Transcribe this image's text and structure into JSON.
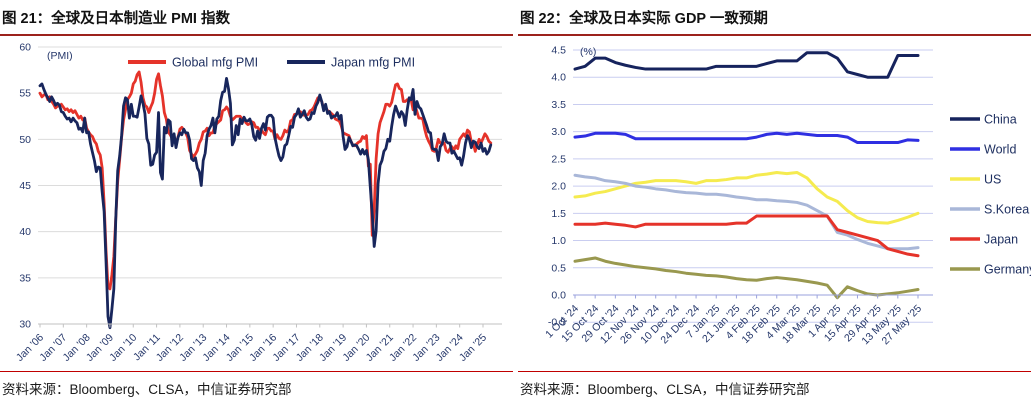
{
  "figures": [
    {
      "title": "图 21：全球及日本制造业 PMI 指数",
      "source": "资料来源：Bloomberg、CLSA，中信证券研究部",
      "chart_data": {
        "type": "line",
        "unit_label": "(PMI)",
        "ylim": [
          30,
          60
        ],
        "yticks": [
          30,
          35,
          40,
          45,
          50,
          55,
          60
        ],
        "grid": true,
        "legend_position": "top",
        "x_tick_labels": [
          "Jan '06",
          "Jan '07",
          "Jan '08",
          "Jan '09",
          "Jan '10",
          "Jan '11",
          "Jan '12",
          "Jan '13",
          "Jan '14",
          "Jan '15",
          "Jan '16",
          "Jan '17",
          "Jan '18",
          "Jan '19",
          "Jan '20",
          "Jan '21",
          "Jan '22",
          "Jan '23",
          "Jan '24",
          "Jan '25"
        ],
        "x_frequency": "monthly, Jan 2006 - May 2025",
        "series": [
          {
            "name": "Global mfg PMI",
            "color": "#e5332a",
            "values": [
              55.0,
              54.6,
              54.8,
              54.9,
              54.3,
              54.6,
              54.1,
              53.8,
              53.4,
              53.6,
              53.6,
              53.8,
              53.5,
              53.2,
              53.3,
              53.0,
              53.2,
              52.9,
              53.1,
              52.7,
              52.3,
              52.5,
              52.1,
              52.3,
              51.2,
              50.8,
              50.5,
              50.3,
              49.8,
              49.5,
              48.7,
              48.3,
              46.9,
              43.1,
              37.9,
              34.0,
              33.8,
              35.3,
              37.3,
              41.5,
              45.5,
              47.8,
              50.2,
              52.1,
              53.2,
              54.3,
              54.6,
              55.0,
              56.0,
              56.3,
              57.0,
              57.3,
              56.2,
              54.5,
              53.7,
              53.5,
              52.9,
              53.5,
              54.0,
              55.0,
              56.5,
              57.1,
              55.8,
              54.7,
              52.9,
              52.2,
              50.8,
              50.5,
              50.1,
              49.8,
              49.6,
              50.2,
              51.1,
              51.3,
              51.0,
              50.7,
              50.2,
              48.8,
              48.4,
              48.1,
              48.4,
              48.8,
              49.6,
              50.0,
              50.8,
              50.9,
              51.2,
              50.4,
              50.7,
              50.7,
              51.5,
              51.7,
              51.9,
              52.1,
              53.1,
              53.2,
              53.5,
              53.2,
              52.5,
              52.1,
              52.3,
              52.5,
              52.5,
              52.5,
              52.2,
              52.2,
              51.8,
              51.6,
              51.7,
              51.9,
              51.8,
              51.3,
              51.3,
              51.0,
              51.0,
              50.7,
              50.5,
              51.2,
              51.2,
              50.9,
              50.9,
              50.0,
              50.5,
              50.1,
              50.0,
              50.4,
              51.0,
              50.8,
              51.0,
              52.0,
              52.1,
              52.7,
              52.7,
              52.9,
              53.0,
              52.8,
              52.6,
              52.6,
              52.7,
              53.1,
              53.2,
              53.5,
              54.0,
              54.5,
              54.4,
              54.1,
              53.3,
              53.5,
              53.1,
              53.0,
              52.8,
              52.6,
              52.2,
              52.1,
              52.0,
              51.5,
              50.7,
              50.6,
              50.5,
              50.4,
              49.8,
              49.4,
              49.3,
              49.5,
              49.7,
              49.8,
              50.3,
              50.1,
              50.4,
              47.1,
              47.3,
              39.6,
              42.4,
              47.9,
              50.6,
              51.8,
              52.4,
              53.0,
              53.8,
              53.8,
              53.6,
              54.0,
              55.0,
              55.9,
              56.0,
              55.5,
              55.4,
              54.1,
              54.1,
              54.3,
              54.2,
              54.3,
              53.2,
              53.7,
              53.0,
              52.3,
              52.3,
              52.2,
              51.1,
              50.3,
              49.8,
              49.4,
              48.8,
              48.7,
              49.1,
              50.0,
              49.6,
              49.6,
              49.6,
              48.8,
              48.6,
              49.0,
              49.2,
              48.8,
              49.3,
              49.0,
              50.0,
              50.3,
              50.6,
              50.3,
              51.0,
              50.8,
              49.7,
              49.6,
              48.7,
              49.4,
              50.0,
              49.6,
              50.1,
              50.6,
              50.3,
              49.8,
              49.6
            ]
          },
          {
            "name": "Japan mfg PMI",
            "color": "#18265c",
            "values": [
              55.8,
              56.0,
              55.4,
              54.9,
              54.5,
              54.1,
              54.6,
              54.2,
              53.7,
              53.9,
              53.7,
              53.0,
              52.9,
              52.5,
              52.2,
              52.3,
              51.9,
              52.3,
              52.0,
              51.8,
              51.1,
              51.2,
              50.8,
              52.3,
              50.7,
              50.8,
              49.5,
              48.6,
              47.7,
              46.5,
              47.0,
              46.9,
              44.3,
              42.2,
              36.7,
              30.8,
              29.6,
              31.6,
              33.8,
              41.4,
              46.6,
              48.2,
              50.4,
              53.6,
              54.5,
              54.3,
              52.3,
              53.8,
              52.5,
              52.5,
              52.4,
              53.5,
              54.7,
              53.9,
              52.8,
              50.1,
              49.5,
              47.2,
              47.3,
              48.3,
              48.6,
              52.9,
              46.4,
              45.7,
              51.3,
              50.7,
              52.1,
              51.9,
              49.3,
              50.6,
              49.1,
              50.2,
              50.7,
              50.5,
              51.1,
              50.7,
              50.7,
              49.9,
              47.9,
              47.7,
              48.0,
              46.9,
              46.5,
              45.0,
              47.7,
              48.5,
              50.4,
              51.1,
              51.5,
              52.3,
              50.7,
              52.2,
              52.5,
              54.2,
              55.1,
              55.2,
              56.6,
              55.5,
              53.9,
              49.4,
              49.9,
              51.5,
              50.5,
              52.2,
              51.7,
              52.4,
              52.0,
              52.0,
              52.2,
              51.6,
              50.3,
              49.9,
              50.9,
              50.1,
              51.2,
              51.7,
              51.0,
              52.4,
              52.6,
              52.6,
              52.3,
              50.1,
              49.1,
              48.2,
              47.7,
              48.1,
              49.3,
              49.5,
              50.4,
              51.4,
              51.3,
              52.4,
              52.7,
              53.3,
              52.4,
              52.7,
              53.1,
              52.4,
              52.1,
              52.2,
              52.9,
              52.8,
              53.6,
              54.0,
              54.8,
              54.1,
              53.1,
              53.8,
              52.8,
              53.0,
              52.3,
              52.5,
              52.5,
              52.9,
              52.2,
              52.6,
              50.3,
              48.9,
              49.2,
              50.2,
              49.8,
              49.3,
              49.4,
              49.3,
              48.9,
              48.4,
              48.9,
              48.4,
              48.8,
              47.8,
              44.8,
              41.9,
              38.4,
              40.1,
              45.2,
              47.2,
              47.7,
              48.7,
              49.0,
              50.0,
              49.8,
              51.4,
              52.7,
              53.6,
              53.0,
              52.4,
              53.0,
              52.7,
              51.5,
              53.2,
              54.5,
              54.3,
              55.4,
              52.7,
              54.1,
              53.5,
              53.3,
              52.7,
              52.1,
              51.5,
              50.8,
              50.7,
              49.0,
              48.9,
              48.9,
              47.7,
              49.2,
              49.5,
              50.6,
              49.8,
              49.6,
              49.6,
              48.5,
              48.7,
              48.3,
              47.9,
              48.0,
              47.2,
              48.2,
              49.6,
              50.4,
              50.0,
              49.1,
              49.8,
              49.7,
              49.2,
              49.0,
              49.6,
              48.7,
              49.0,
              48.4,
              48.7,
              49.4
            ]
          }
        ]
      }
    },
    {
      "title": "图 22：全球及日本实际 GDP 一致预期",
      "source": "资料来源：Bloomberg、CLSA，中信证券研究部",
      "chart_data": {
        "type": "line",
        "unit_label": "(%)",
        "ylim": [
          -0.5,
          4.5
        ],
        "yticks": [
          -0.5,
          0.0,
          0.5,
          1.0,
          1.5,
          2.0,
          2.5,
          3.0,
          3.5,
          4.0,
          4.5
        ],
        "grid": true,
        "legend_position": "right",
        "x_tick_labels": [
          "1 Oct '24",
          "15 Oct '24",
          "29 Oct '24",
          "12 Nov '24",
          "26 Nov '24",
          "10 Dec '24",
          "24 Dec '24",
          "7 Jan '25",
          "21 Jan '25",
          "4 Feb '25",
          "18 Feb '25",
          "4 Mar '25",
          "18 Mar '25",
          "1 Apr '25",
          "15 Apr '25",
          "29 Apr '25",
          "13 May '25",
          "27 May '25"
        ],
        "x_frequency": "weekly, 1 Oct 2024 - 27 May 2025",
        "series": [
          {
            "name": "China",
            "color": "#16235d",
            "values": [
              4.15,
              4.2,
              4.35,
              4.35,
              4.27,
              4.22,
              4.18,
              4.15,
              4.15,
              4.15,
              4.15,
              4.15,
              4.15,
              4.15,
              4.2,
              4.2,
              4.2,
              4.2,
              4.2,
              4.25,
              4.3,
              4.3,
              4.3,
              4.45,
              4.45,
              4.45,
              4.35,
              4.1,
              4.05,
              4.0,
              4.0,
              4.0,
              4.4,
              4.4,
              4.4
            ]
          },
          {
            "name": "World",
            "color": "#2f2fe2",
            "values": [
              2.9,
              2.92,
              2.97,
              2.97,
              2.97,
              2.95,
              2.87,
              2.87,
              2.87,
              2.87,
              2.87,
              2.87,
              2.87,
              2.87,
              2.87,
              2.87,
              2.87,
              2.87,
              2.9,
              2.95,
              2.97,
              2.95,
              2.97,
              2.95,
              2.93,
              2.93,
              2.93,
              2.9,
              2.8,
              2.8,
              2.8,
              2.8,
              2.8,
              2.85,
              2.84
            ]
          },
          {
            "name": "US",
            "color": "#f5eb50",
            "values": [
              1.8,
              1.82,
              1.87,
              1.9,
              1.95,
              2.0,
              2.05,
              2.07,
              2.1,
              2.1,
              2.1,
              2.08,
              2.05,
              2.1,
              2.1,
              2.12,
              2.15,
              2.15,
              2.2,
              2.22,
              2.25,
              2.23,
              2.25,
              2.15,
              1.95,
              1.8,
              1.72,
              1.55,
              1.42,
              1.35,
              1.33,
              1.32,
              1.37,
              1.43,
              1.5
            ]
          },
          {
            "name": "S.Korea",
            "color": "#a9b7d8",
            "values": [
              2.2,
              2.17,
              2.15,
              2.1,
              2.08,
              2.05,
              2.0,
              1.98,
              1.95,
              1.93,
              1.9,
              1.88,
              1.87,
              1.85,
              1.85,
              1.83,
              1.8,
              1.78,
              1.75,
              1.75,
              1.73,
              1.72,
              1.7,
              1.65,
              1.55,
              1.45,
              1.15,
              1.1,
              1.02,
              0.95,
              0.9,
              0.85,
              0.85,
              0.85,
              0.87
            ]
          },
          {
            "name": "Japan",
            "color": "#e5332a",
            "values": [
              1.3,
              1.3,
              1.3,
              1.32,
              1.3,
              1.28,
              1.25,
              1.3,
              1.3,
              1.3,
              1.3,
              1.3,
              1.3,
              1.3,
              1.3,
              1.3,
              1.32,
              1.32,
              1.45,
              1.45,
              1.45,
              1.45,
              1.45,
              1.45,
              1.45,
              1.45,
              1.2,
              1.15,
              1.1,
              1.05,
              1.0,
              0.85,
              0.8,
              0.75,
              0.72
            ]
          },
          {
            "name": "Germany",
            "color": "#99984f",
            "values": [
              0.62,
              0.65,
              0.68,
              0.62,
              0.58,
              0.55,
              0.52,
              0.5,
              0.48,
              0.45,
              0.43,
              0.4,
              0.38,
              0.36,
              0.35,
              0.33,
              0.3,
              0.28,
              0.27,
              0.3,
              0.32,
              0.3,
              0.28,
              0.25,
              0.22,
              0.18,
              -0.05,
              0.15,
              0.08,
              0.02,
              0.0,
              0.02,
              0.04,
              0.07,
              0.1
            ]
          }
        ]
      }
    }
  ]
}
